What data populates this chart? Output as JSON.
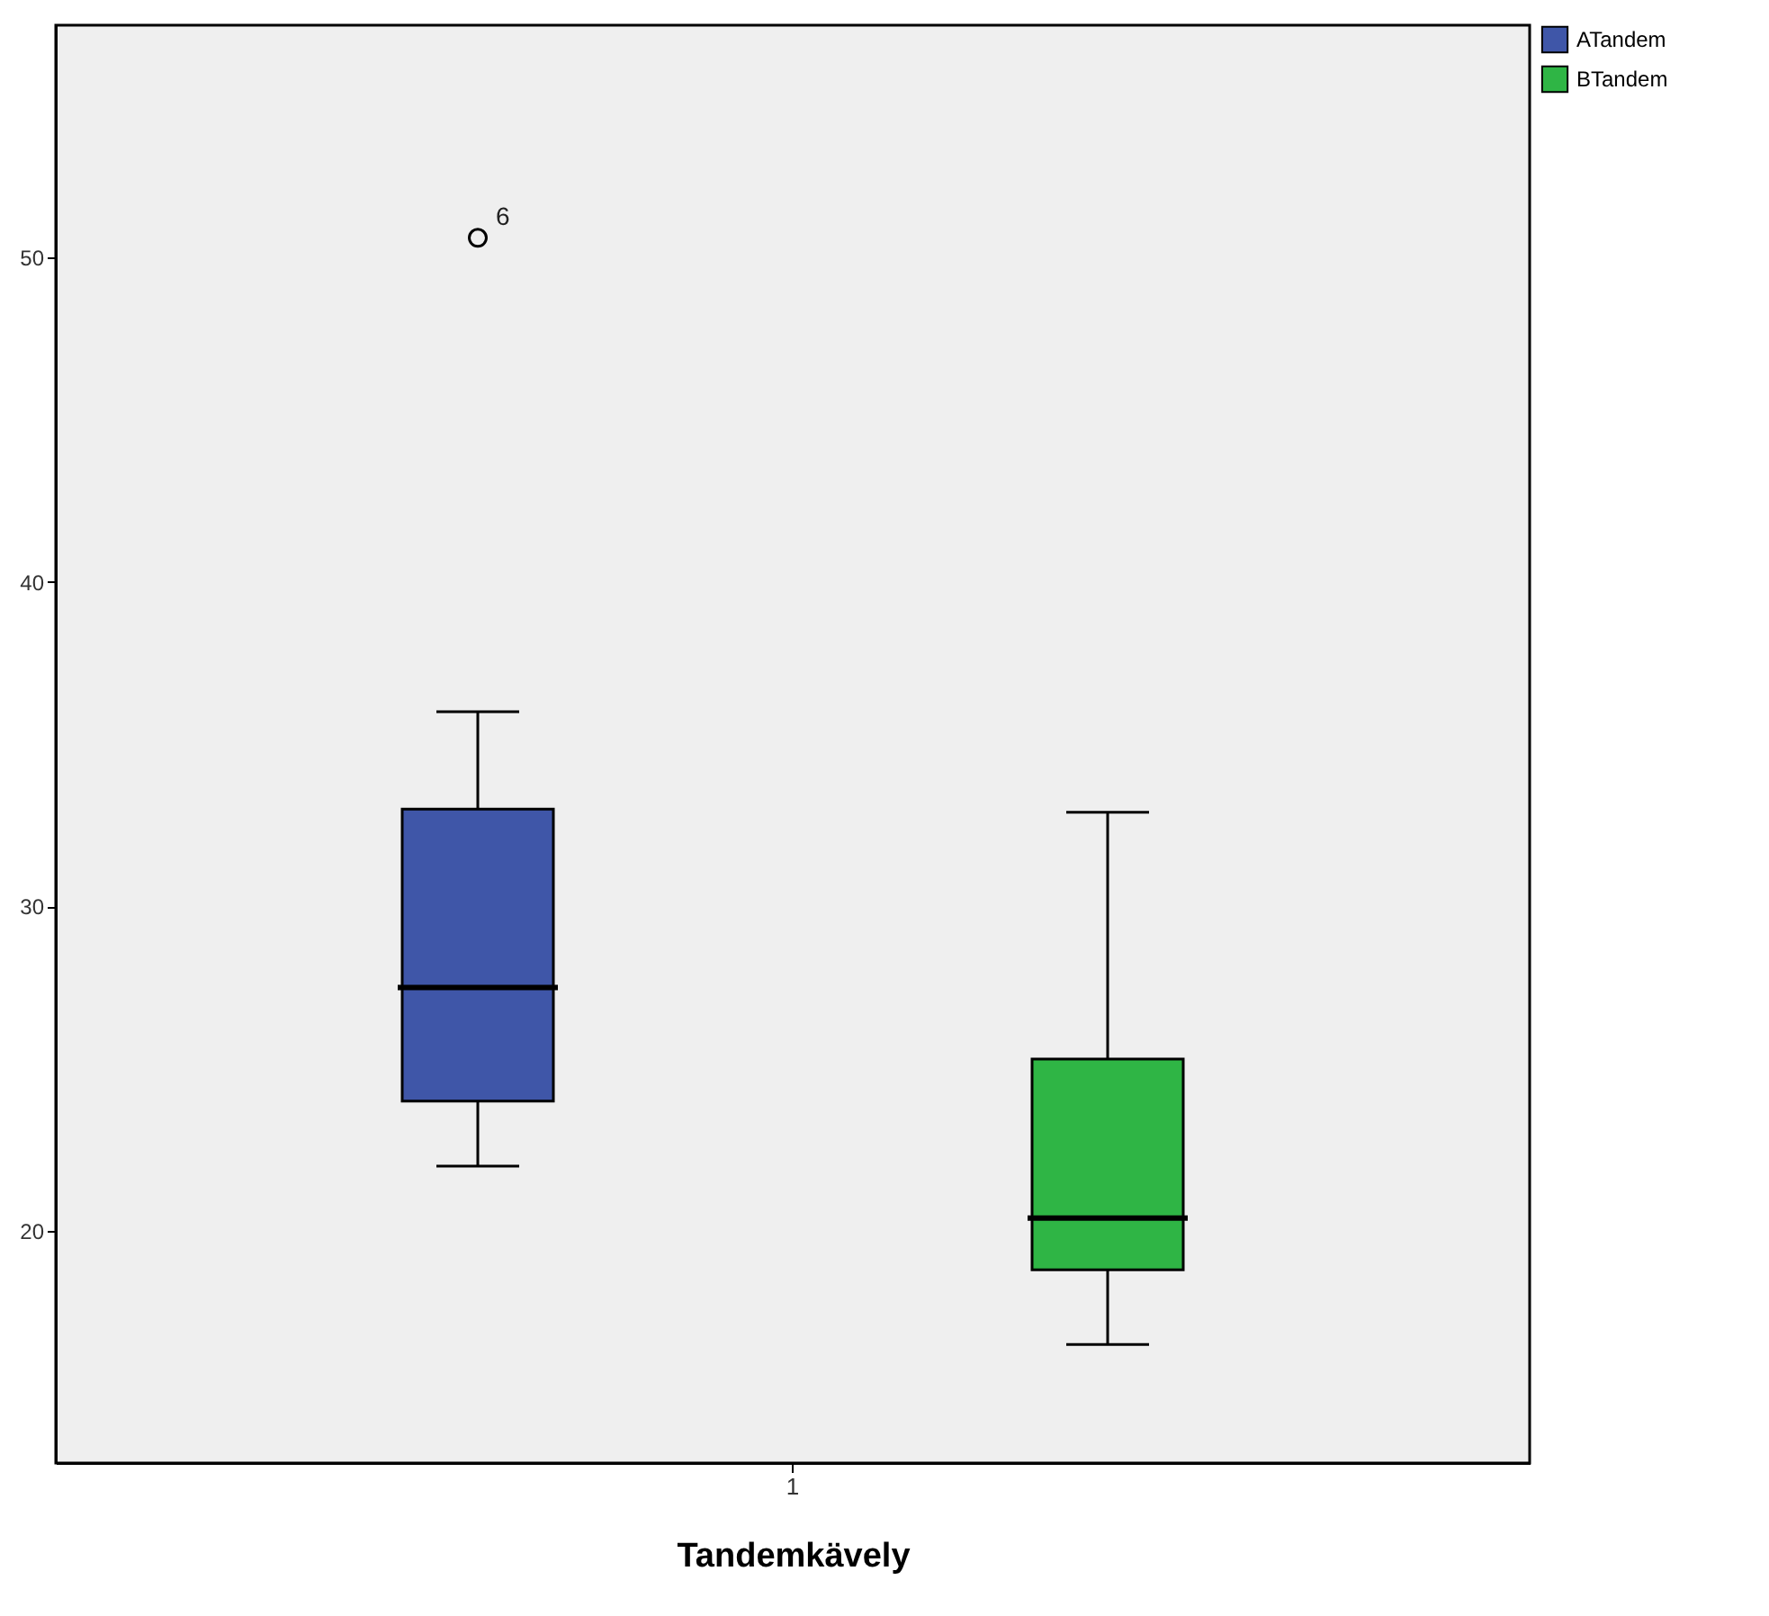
{
  "chart_data": {
    "type": "box",
    "xlabel": "Tandemkävely",
    "categories": [
      "1"
    ],
    "ylim": [
      12.85,
      57.15
    ],
    "yticks": [
      20,
      30,
      40,
      50
    ],
    "legend": "top right",
    "series": [
      {
        "name": "ATandem",
        "color": "#3f56a8",
        "boxes": [
          {
            "low": 22.0,
            "q1": 24.0,
            "median": 27.5,
            "q3": 33.0,
            "high": 36.0,
            "outliers": [
              50.6
            ]
          }
        ]
      },
      {
        "name": "BTandem",
        "color": "#2fb545",
        "boxes": [
          {
            "low": 16.5,
            "q1": 18.8,
            "median": 20.4,
            "q3": 25.3,
            "high": 32.9
          }
        ]
      }
    ],
    "annotations": [
      "6"
    ]
  }
}
